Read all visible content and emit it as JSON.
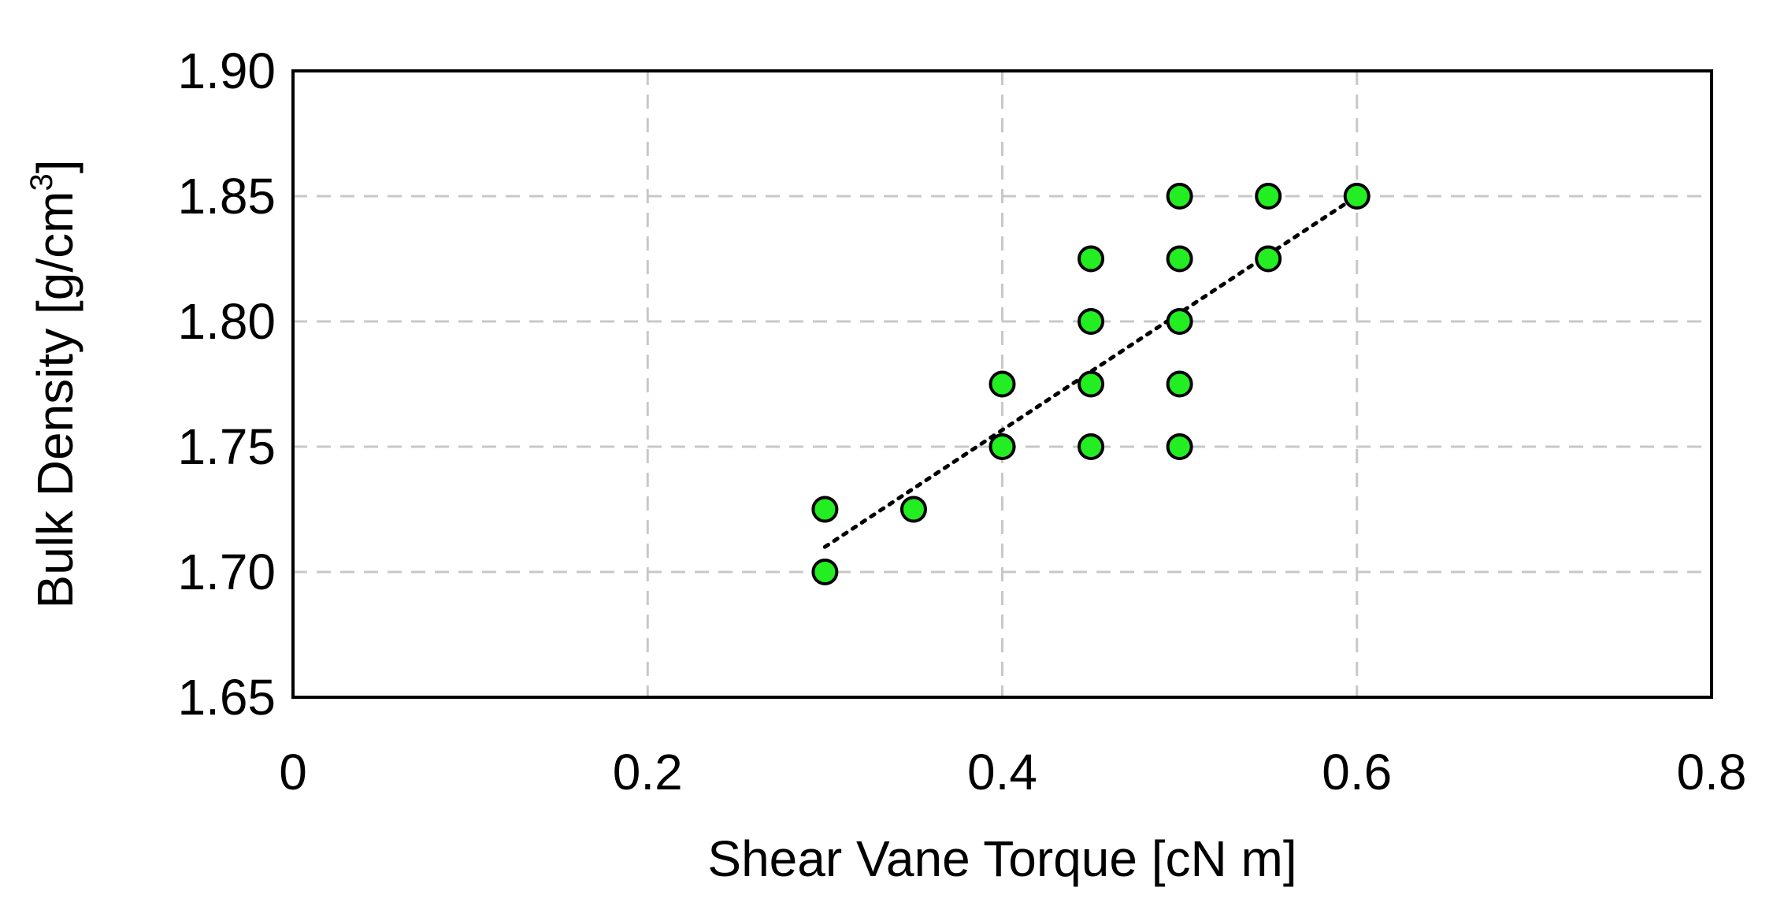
{
  "chart_data": {
    "type": "scatter",
    "title": "",
    "xlabel": "Shear Vane Torque [cN m]",
    "ylabel": "Bulk Density [g/cm",
    "ylabel_superscript": "3",
    "ylabel_suffix": "]",
    "xlim": [
      0,
      0.8
    ],
    "ylim": [
      1.65,
      1.9
    ],
    "x_ticks": [
      "0",
      "0.2",
      "0.4",
      "0.6",
      "0.8"
    ],
    "y_ticks": [
      "1.65",
      "1.70",
      "1.75",
      "1.80",
      "1.85",
      "1.90"
    ],
    "grid": true,
    "legend": "none",
    "series": [
      {
        "points": [
          {
            "x": 0.3,
            "y": 1.7
          },
          {
            "x": 0.3,
            "y": 1.725
          },
          {
            "x": 0.35,
            "y": 1.725
          },
          {
            "x": 0.4,
            "y": 1.75
          },
          {
            "x": 0.4,
            "y": 1.775
          },
          {
            "x": 0.45,
            "y": 1.75
          },
          {
            "x": 0.45,
            "y": 1.775
          },
          {
            "x": 0.45,
            "y": 1.8
          },
          {
            "x": 0.45,
            "y": 1.825
          },
          {
            "x": 0.5,
            "y": 1.75
          },
          {
            "x": 0.5,
            "y": 1.775
          },
          {
            "x": 0.5,
            "y": 1.8
          },
          {
            "x": 0.5,
            "y": 1.825
          },
          {
            "x": 0.5,
            "y": 1.85
          },
          {
            "x": 0.55,
            "y": 1.825
          },
          {
            "x": 0.55,
            "y": 1.85
          },
          {
            "x": 0.6,
            "y": 1.85
          }
        ]
      }
    ],
    "trendline": {
      "style": "dotted",
      "x": [
        0.3,
        0.6
      ],
      "y": [
        1.71,
        1.85
      ]
    },
    "colors": {
      "marker_fill": "#22ee22",
      "marker_stroke": "#000000",
      "grid": "#c8c8c8",
      "trendline": "#000000"
    }
  }
}
